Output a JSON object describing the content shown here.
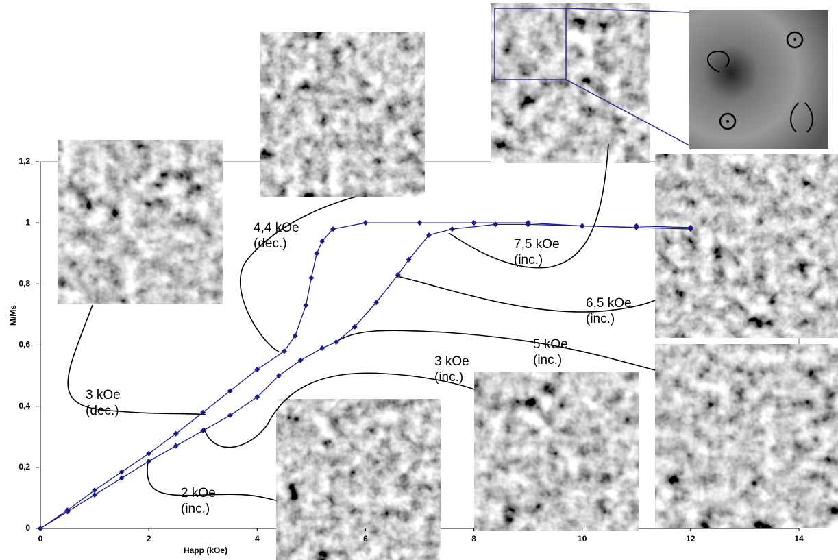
{
  "chart_data": {
    "type": "line",
    "xlabel": "Happ (kOe)",
    "ylabel": "M/Ms",
    "xlim": [
      0,
      14
    ],
    "ylim": [
      0,
      1.2
    ],
    "xticks": [
      0,
      2,
      4,
      6,
      8,
      10,
      12,
      14
    ],
    "yticks": [
      0,
      {
        "value": 0.2,
        "label": "0,2"
      },
      {
        "value": 0.4,
        "label": "0,4"
      },
      {
        "value": 0.6,
        "label": "0,6"
      },
      {
        "value": 0.8,
        "label": "0,8"
      },
      1,
      {
        "value": 1.2,
        "label": "1,2"
      }
    ],
    "series": [
      {
        "color": "#1a1a8c",
        "x": [
          0,
          0.5,
          1,
          1.5,
          2,
          2.5,
          3,
          3.5,
          4,
          4.4,
          4.8,
          5.2,
          5.46,
          5.8,
          6.2,
          6.6,
          6.8,
          7.17,
          7.6,
          8.4,
          9,
          10,
          11,
          12
        ],
        "values": [
          0,
          0.055,
          0.11,
          0.165,
          0.22,
          0.27,
          0.32,
          0.37,
          0.43,
          0.5,
          0.55,
          0.59,
          0.61,
          0.66,
          0.74,
          0.83,
          0.88,
          0.96,
          0.98,
          0.995,
          0.995,
          0.99,
          0.985,
          0.98
        ]
      },
      {
        "color": "#1a1a8c",
        "x": [
          0,
          0.5,
          1,
          1.5,
          2,
          2.5,
          3,
          3.5,
          4,
          4.5,
          4.7,
          4.9,
          5.0,
          5.1,
          5.2,
          5.4,
          6,
          7,
          8,
          9,
          10,
          11,
          12
        ],
        "values": [
          0,
          0.06,
          0.125,
          0.185,
          0.245,
          0.31,
          0.38,
          0.45,
          0.52,
          0.58,
          0.63,
          0.73,
          0.82,
          0.9,
          0.94,
          0.98,
          1.0,
          1.0,
          1.0,
          1.0,
          0.99,
          0.99,
          0.985
        ]
      }
    ],
    "annotations": [
      {
        "lines": [
          "4,4 kOe",
          "(dec.)"
        ]
      },
      {
        "lines": [
          "7,5 kOe",
          "(inc.)"
        ]
      },
      {
        "lines": [
          "6,5 kOe",
          "(inc.)"
        ]
      },
      {
        "lines": [
          "5 kOe",
          "(inc.)"
        ]
      },
      {
        "lines": [
          "3 kOe",
          "(inc.)"
        ]
      },
      {
        "lines": [
          "3 kOe",
          "(dec.)"
        ]
      },
      {
        "lines": [
          "2 kOe",
          "(inc.)"
        ]
      }
    ]
  }
}
